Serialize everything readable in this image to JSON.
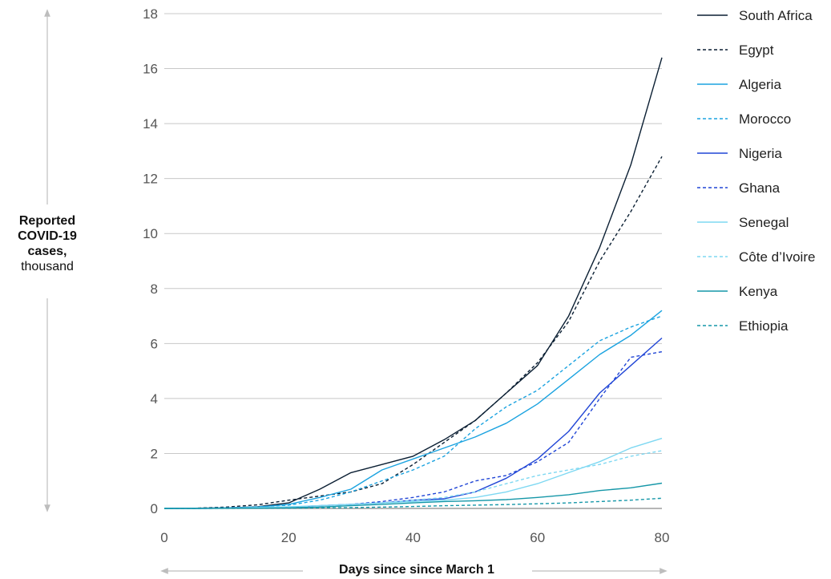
{
  "chart_data": {
    "type": "line",
    "xlabel": "Days since since March 1",
    "ylabel_line1": "Reported",
    "ylabel_line2": "COVID-19",
    "ylabel_line3": "cases,",
    "ylabel_line4": "thousand",
    "xlim": [
      0,
      80
    ],
    "ylim": [
      0,
      18
    ],
    "xticks": [
      0,
      20,
      40,
      60,
      80
    ],
    "yticks": [
      0,
      2,
      4,
      6,
      8,
      10,
      12,
      14,
      16,
      18
    ],
    "grid": "horizontal",
    "legend_position": "right",
    "x": [
      0,
      5,
      10,
      15,
      20,
      25,
      30,
      35,
      40,
      45,
      50,
      55,
      60,
      65,
      70,
      75,
      80
    ],
    "series": [
      {
        "name": "South Africa",
        "color": "#0b1f33",
        "dash": false,
        "values": [
          0,
          0.01,
          0.02,
          0.06,
          0.2,
          0.7,
          1.3,
          1.6,
          1.9,
          2.5,
          3.2,
          4.2,
          5.2,
          7,
          9.5,
          12.5,
          16.4
        ]
      },
      {
        "name": "Egypt",
        "color": "#0b1f33",
        "dash": true,
        "values": [
          0,
          0.01,
          0.05,
          0.13,
          0.3,
          0.45,
          0.6,
          0.9,
          1.6,
          2.4,
          3.2,
          4.2,
          5.3,
          6.8,
          9,
          10.8,
          12.8
        ]
      },
      {
        "name": "Algeria",
        "color": "#1ba3e0",
        "dash": false,
        "values": [
          0,
          0.005,
          0.02,
          0.05,
          0.15,
          0.4,
          0.7,
          1.4,
          1.8,
          2.2,
          2.6,
          3.1,
          3.8,
          4.7,
          5.6,
          6.3,
          7.2
        ]
      },
      {
        "name": "Morocco",
        "color": "#1ba3e0",
        "dash": true,
        "values": [
          0,
          0.005,
          0.02,
          0.06,
          0.12,
          0.3,
          0.6,
          1,
          1.4,
          1.9,
          2.9,
          3.7,
          4.3,
          5.2,
          6.1,
          6.6,
          7
        ]
      },
      {
        "name": "Nigeria",
        "color": "#2146d6",
        "dash": false,
        "values": [
          0,
          0,
          0.01,
          0.02,
          0.04,
          0.1,
          0.15,
          0.2,
          0.3,
          0.35,
          0.6,
          1.1,
          1.8,
          2.8,
          4.2,
          5.2,
          6.2
        ]
      },
      {
        "name": "Ghana",
        "color": "#2146d6",
        "dash": true,
        "values": [
          0,
          0,
          0.01,
          0.02,
          0.04,
          0.1,
          0.15,
          0.25,
          0.4,
          0.6,
          1,
          1.2,
          1.7,
          2.4,
          4,
          5.5,
          5.7
        ]
      },
      {
        "name": "Senegal",
        "color": "#7ed8f2",
        "dash": false,
        "values": [
          0,
          0,
          0.01,
          0.03,
          0.06,
          0.1,
          0.15,
          0.2,
          0.25,
          0.3,
          0.4,
          0.6,
          0.9,
          1.3,
          1.7,
          2.2,
          2.55
        ]
      },
      {
        "name": "Côte d’Ivoire",
        "color": "#7ed8f2",
        "dash": true,
        "values": [
          0,
          0,
          0.01,
          0.03,
          0.05,
          0.1,
          0.15,
          0.2,
          0.3,
          0.4,
          0.6,
          0.9,
          1.2,
          1.4,
          1.6,
          1.9,
          2.1
        ]
      },
      {
        "name": "Kenya",
        "color": "#1597a8",
        "dash": false,
        "values": [
          0,
          0,
          0.005,
          0.01,
          0.02,
          0.05,
          0.1,
          0.15,
          0.2,
          0.25,
          0.28,
          0.32,
          0.4,
          0.5,
          0.65,
          0.75,
          0.92
        ]
      },
      {
        "name": "Ethiopia",
        "color": "#1597a8",
        "dash": true,
        "values": [
          0,
          0,
          0.002,
          0.005,
          0.01,
          0.02,
          0.03,
          0.05,
          0.07,
          0.1,
          0.12,
          0.14,
          0.17,
          0.2,
          0.25,
          0.3,
          0.37
        ]
      }
    ]
  }
}
